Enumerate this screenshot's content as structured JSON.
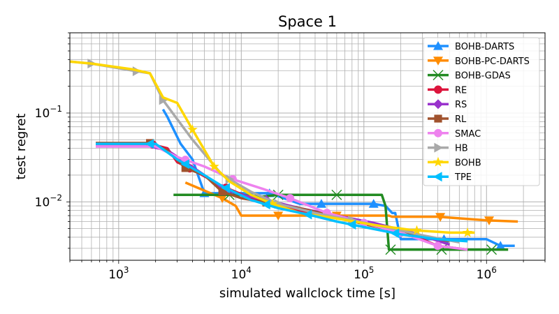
{
  "chart_data": {
    "type": "line",
    "title": "Space 1",
    "xlabel": "simulated wallclock time [s]",
    "ylabel": "test regret",
    "xscale": "log",
    "yscale": "log",
    "xlim": [
      400,
      3000000
    ],
    "ylim": [
      0.0022,
      0.8
    ],
    "grid": true,
    "legend_position": "top-right",
    "x_ticks": [
      {
        "value": 1000,
        "base": "10",
        "exp": "3"
      },
      {
        "value": 10000,
        "base": "10",
        "exp": "4"
      },
      {
        "value": 100000,
        "base": "10",
        "exp": "5"
      },
      {
        "value": 1000000,
        "base": "10",
        "exp": "6"
      }
    ],
    "y_ticks": [
      {
        "value": 0.01,
        "base": "10",
        "exp": "−2"
      },
      {
        "value": 0.1,
        "base": "10",
        "exp": "−1"
      }
    ],
    "series": [
      {
        "name": "BOHB-DARTS",
        "color": "#1e90ff",
        "marker": "triangle-up",
        "x": [
          2300,
          2500,
          3200,
          4000,
          5000,
          6000,
          8000,
          12000,
          17000,
          30000,
          45000,
          80000,
          120000,
          150000,
          170000,
          180000,
          200000,
          500000,
          700000,
          1000000,
          1300000,
          1700000
        ],
        "y": [
          0.11,
          0.09,
          0.045,
          0.03,
          0.0125,
          0.0125,
          0.0125,
          0.0125,
          0.0125,
          0.0095,
          0.0095,
          0.0095,
          0.0095,
          0.009,
          0.0075,
          0.0075,
          0.0038,
          0.0038,
          0.0038,
          0.0038,
          0.0032,
          0.0032
        ],
        "mx": [
          5000,
          17000,
          45000,
          120000,
          450000,
          1300000
        ]
      },
      {
        "name": "BOHB-PC-DARTS",
        "color": "#ff8c00",
        "marker": "triangle-down",
        "x": [
          3500,
          7000,
          9000,
          10000,
          20000,
          50000,
          100000,
          130000,
          160000,
          170000,
          400000,
          1000000,
          1800000
        ],
        "y": [
          0.0165,
          0.011,
          0.009,
          0.007,
          0.007,
          0.007,
          0.007,
          0.007,
          0.007,
          0.0068,
          0.0068,
          0.0062,
          0.006
        ],
        "mx": [
          7000,
          20000,
          60000,
          420000,
          1050000
        ]
      },
      {
        "name": "BOHB-GDAS",
        "color": "#228b22",
        "marker": "x",
        "x": [
          2800,
          8000,
          9000,
          15000,
          20000,
          60000,
          140000,
          150000,
          160000,
          400000,
          1500000
        ],
        "y": [
          0.012,
          0.012,
          0.012,
          0.0115,
          0.012,
          0.012,
          0.012,
          0.009,
          0.0029,
          0.0029,
          0.0029
        ],
        "mx": [
          8000,
          20000,
          60000,
          165000,
          430000,
          1100000
        ]
      },
      {
        "name": "RE",
        "color": "#dc143c",
        "marker": "circle",
        "x": [
          650,
          1800,
          2500,
          3000,
          4000,
          7000,
          12000,
          16000,
          25000,
          50000,
          100000,
          200000,
          400000,
          700000
        ],
        "y": [
          0.045,
          0.045,
          0.04,
          0.028,
          0.023,
          0.015,
          0.011,
          0.01,
          0.0085,
          0.0068,
          0.0058,
          0.0048,
          0.0032,
          0.0029
        ],
        "mx": [
          1900,
          3800,
          7500,
          16000
        ]
      },
      {
        "name": "RS",
        "color": "#9932cc",
        "marker": "diamond",
        "x": [
          650,
          1800,
          2500,
          3500,
          5000,
          7000,
          10000,
          16000,
          30000,
          60000,
          120000,
          250000,
          500000
        ],
        "y": [
          0.042,
          0.042,
          0.038,
          0.028,
          0.02,
          0.014,
          0.012,
          0.0105,
          0.0085,
          0.007,
          0.0058,
          0.0045,
          0.0033
        ],
        "mx": [
          7000,
          16000
        ]
      },
      {
        "name": "RL",
        "color": "#a0522d",
        "marker": "square",
        "x": [
          650,
          1800,
          2500,
          3500,
          5000,
          7000,
          10000,
          16000,
          30000,
          60000,
          100000,
          200000,
          500000
        ],
        "y": [
          0.046,
          0.046,
          0.038,
          0.024,
          0.02,
          0.013,
          0.011,
          0.0098,
          0.0085,
          0.0068,
          0.0056,
          0.0046,
          0.0036
        ],
        "mx": [
          1800,
          3500,
          7000,
          16000
        ]
      },
      {
        "name": "SMAC",
        "color": "#ee82ee",
        "marker": "circle",
        "x": [
          650,
          2000,
          3000,
          5000,
          8500,
          15000,
          25000,
          50000,
          100000,
          200000,
          400000,
          700000
        ],
        "y": [
          0.042,
          0.042,
          0.032,
          0.025,
          0.018,
          0.014,
          0.011,
          0.0075,
          0.0058,
          0.0045,
          0.0032,
          0.0029
        ],
        "mx": [
          3500,
          8500,
          25000,
          50000,
          100000,
          200000,
          400000
        ]
      },
      {
        "name": "HB",
        "color": "#a9a9a9",
        "marker": "triangle-right",
        "x": [
          400,
          600,
          1300,
          1800,
          2300,
          4000,
          7000,
          12000,
          20000,
          40000,
          80000,
          150000,
          300000,
          600000
        ],
        "y": [
          0.38,
          0.36,
          0.3,
          0.28,
          0.14,
          0.05,
          0.02,
          0.013,
          0.0095,
          0.0075,
          0.0062,
          0.0052,
          0.0042,
          0.0035
        ],
        "mx": [
          600,
          1400,
          2300,
          8000,
          20000,
          80000
        ]
      },
      {
        "name": "BOHB",
        "color": "#ffd700",
        "marker": "star",
        "x": [
          400,
          600,
          1300,
          1800,
          2300,
          3000,
          4000,
          6000,
          8000,
          12000,
          18000,
          30000,
          60000,
          120000,
          250000,
          500000,
          800000
        ],
        "y": [
          0.38,
          0.36,
          0.31,
          0.28,
          0.15,
          0.13,
          0.065,
          0.025,
          0.017,
          0.012,
          0.0095,
          0.0075,
          0.0065,
          0.0055,
          0.0048,
          0.0045,
          0.0045
        ],
        "mx": [
          4000,
          6000,
          18000,
          270000,
          700000
        ]
      },
      {
        "name": "TPE",
        "color": "#00bfff",
        "marker": "triangle-left",
        "x": [
          650,
          2000,
          3000,
          5000,
          7000,
          12000,
          20000,
          35000,
          60000,
          100000,
          200000,
          400000,
          700000
        ],
        "y": [
          0.045,
          0.045,
          0.03,
          0.02,
          0.015,
          0.0105,
          0.0085,
          0.0072,
          0.006,
          0.0052,
          0.0043,
          0.0038,
          0.0036
        ],
        "mx": [
          1800,
          3500,
          7500,
          16000,
          35000,
          80000,
          180000
        ]
      }
    ]
  }
}
